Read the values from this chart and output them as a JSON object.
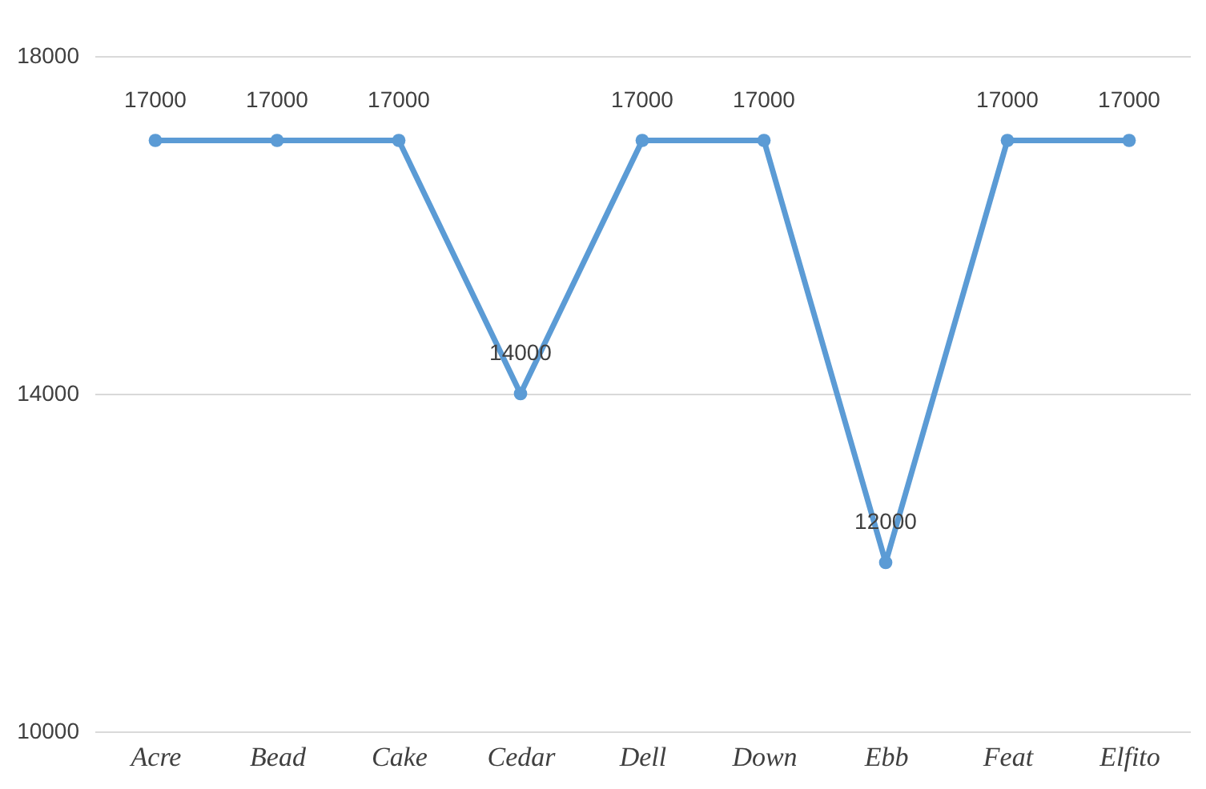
{
  "chart_data": {
    "type": "line",
    "categories": [
      "Acre",
      "Bead",
      "Cake",
      "Cedar",
      "Dell",
      "Down",
      "Ebb",
      "Feat",
      "Elfito"
    ],
    "series": [
      {
        "color": "#5b9bd5",
        "values": [
          17000,
          17000,
          17000,
          14000,
          17000,
          17000,
          12000,
          17000,
          17000
        ]
      }
    ],
    "ylim": [
      10000,
      18000
    ],
    "yticks": [
      10000,
      14000,
      18000
    ],
    "grid": "y",
    "marker": "circle",
    "line_style": "solid",
    "data_labels": true
  }
}
